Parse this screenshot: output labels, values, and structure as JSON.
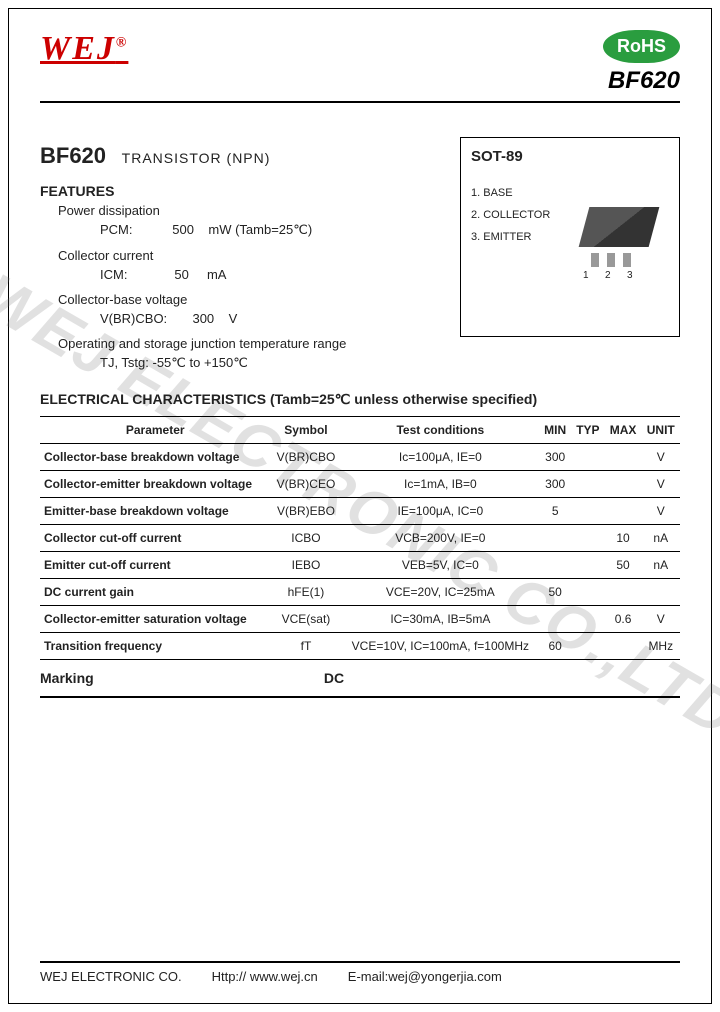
{
  "brand": "WEJ",
  "rohs": "RoHS",
  "part_number": "BF620",
  "title": {
    "part": "BF620",
    "type": "TRANSISTOR (NPN)"
  },
  "features_h": "FEATURES",
  "features": {
    "pd_label": "Power dissipation",
    "pd_sym": "PCM:",
    "pd_val": "500",
    "pd_unit": "mW (Tamb=25℃)",
    "ic_label": "Collector current",
    "ic_sym": "ICM:",
    "ic_val": "50",
    "ic_unit": "mA",
    "vcb_label": "Collector-base voltage",
    "vcb_sym": "V(BR)CBO:",
    "vcb_val": "300",
    "vcb_unit": "V",
    "tj_label": "Operating and storage junction temperature range",
    "tj_val": "TJ, Tstg: -55℃ to +150℃"
  },
  "package": {
    "title": "SOT-89",
    "pin1": "1. BASE",
    "pin2": "2. COLLECTOR",
    "pin3": "3. EMITTER",
    "n1": "1",
    "n2": "2",
    "n3": "3"
  },
  "ec_h": "ELECTRICAL CHARACTERISTICS (Tamb=25℃    unless   otherwise   specified)",
  "cols": {
    "param": "Parameter",
    "sym": "Symbol",
    "cond": "Test   conditions",
    "min": "MIN",
    "typ": "TYP",
    "max": "MAX",
    "unit": "UNIT"
  },
  "rows": [
    {
      "param": "Collector-base breakdown voltage",
      "sym": "V(BR)CBO",
      "cond": "Ic=100μA, IE=0",
      "min": "300",
      "typ": "",
      "max": "",
      "unit": "V"
    },
    {
      "param": "Collector-emitter breakdown voltage",
      "sym": "V(BR)CEO",
      "cond": "Ic=1mA, IB=0",
      "min": "300",
      "typ": "",
      "max": "",
      "unit": "V"
    },
    {
      "param": "Emitter-base breakdown voltage",
      "sym": "V(BR)EBO",
      "cond": "IE=100μA, IC=0",
      "min": "5",
      "typ": "",
      "max": "",
      "unit": "V"
    },
    {
      "param": "Collector cut-off current",
      "sym": "ICBO",
      "cond": "VCB=200V, IE=0",
      "min": "",
      "typ": "",
      "max": "10",
      "unit": "nA"
    },
    {
      "param": "Emitter cut-off current",
      "sym": "IEBO",
      "cond": "VEB=5V, IC=0",
      "min": "",
      "typ": "",
      "max": "50",
      "unit": "nA"
    },
    {
      "param": "DC current gain",
      "sym": "hFE(1)",
      "cond": "VCE=20V, IC=25mA",
      "min": "50",
      "typ": "",
      "max": "",
      "unit": ""
    },
    {
      "param": "Collector-emitter saturation voltage",
      "sym": "VCE(sat)",
      "cond": "IC=30mA, IB=5mA",
      "min": "",
      "typ": "",
      "max": "0.6",
      "unit": "V"
    },
    {
      "param": "Transition frequency",
      "sym": "fT",
      "cond": "VCE=10V, IC=100mA, f=100MHz",
      "min": "60",
      "typ": "",
      "max": "",
      "unit": "MHz"
    }
  ],
  "marking": {
    "label": "Marking",
    "value": "DC"
  },
  "footer": {
    "company": "WEJ ELECTRONIC CO.",
    "url": "Http:// www.wej.cn",
    "email": "E-mail:wej@yongerjia.com"
  },
  "watermark": "WEJ ELECTRONIC CO.,LTD"
}
